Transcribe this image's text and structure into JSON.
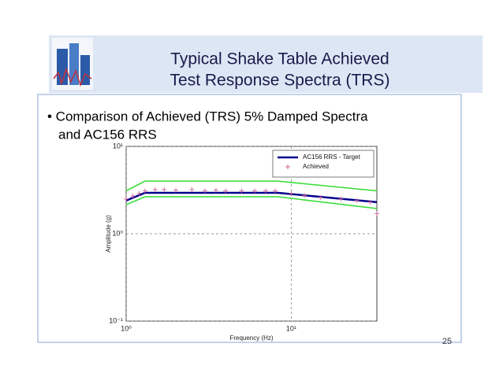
{
  "header": {
    "title_lines": [
      "Typical Shake Table Achieved",
      "Test Response Spectra (TRS)"
    ]
  },
  "body": {
    "bullet_lines": [
      "• Comparison of Achieved (TRS) 5% Damped Spectra",
      "and AC156 RRS"
    ]
  },
  "page_number": 25,
  "chart_data": {
    "type": "line",
    "xlabel": "Frequency (Hz)",
    "ylabel": "Amplitude (g)",
    "xlog": true,
    "ylog": true,
    "grid": true,
    "legend": "upper right",
    "xlim": [
      1,
      33
    ],
    "ylim": [
      0.1,
      10
    ],
    "xticks": [
      {
        "value": 1,
        "label": "10⁰"
      },
      {
        "value": 10,
        "label": "10¹"
      }
    ],
    "yticks": [
      {
        "value": 0.1,
        "label": "10⁻¹"
      },
      {
        "value": 1,
        "label": "10⁰"
      },
      {
        "value": 10,
        "label": "10¹"
      }
    ],
    "series": [
      {
        "color": "#33dd33",
        "x": [
          1,
          1.3,
          8.3,
          33
        ],
        "values": [
          3.1,
          4.0,
          4.0,
          3.1
        ]
      },
      {
        "color": "#33dd33",
        "x": [
          1,
          1.3,
          8.3,
          33
        ],
        "values": [
          2.15,
          2.65,
          2.65,
          1.94
        ]
      },
      {
        "name": "AC156 RRS - Target",
        "color": "#00008b",
        "x": [
          1,
          1.3,
          8.3,
          33
        ],
        "values": [
          2.4,
          2.94,
          2.94,
          2.3
        ]
      },
      {
        "name": "Achieved",
        "color": "#d0609a",
        "marker": "+",
        "x": [
          1,
          1.1,
          1.2,
          1.3,
          1.5,
          1.7,
          2,
          2.5,
          3,
          3.5,
          4,
          5,
          6,
          7,
          8,
          10,
          12,
          15,
          20,
          25,
          30,
          33
        ],
        "values": [
          2.5,
          2.7,
          2.9,
          3.1,
          3.2,
          3.2,
          3.15,
          3.2,
          3.1,
          3.15,
          3.1,
          3.1,
          3.1,
          3.1,
          3.1,
          2.9,
          2.75,
          2.6,
          2.5,
          2.4,
          2.3,
          1.7
        ]
      }
    ]
  }
}
